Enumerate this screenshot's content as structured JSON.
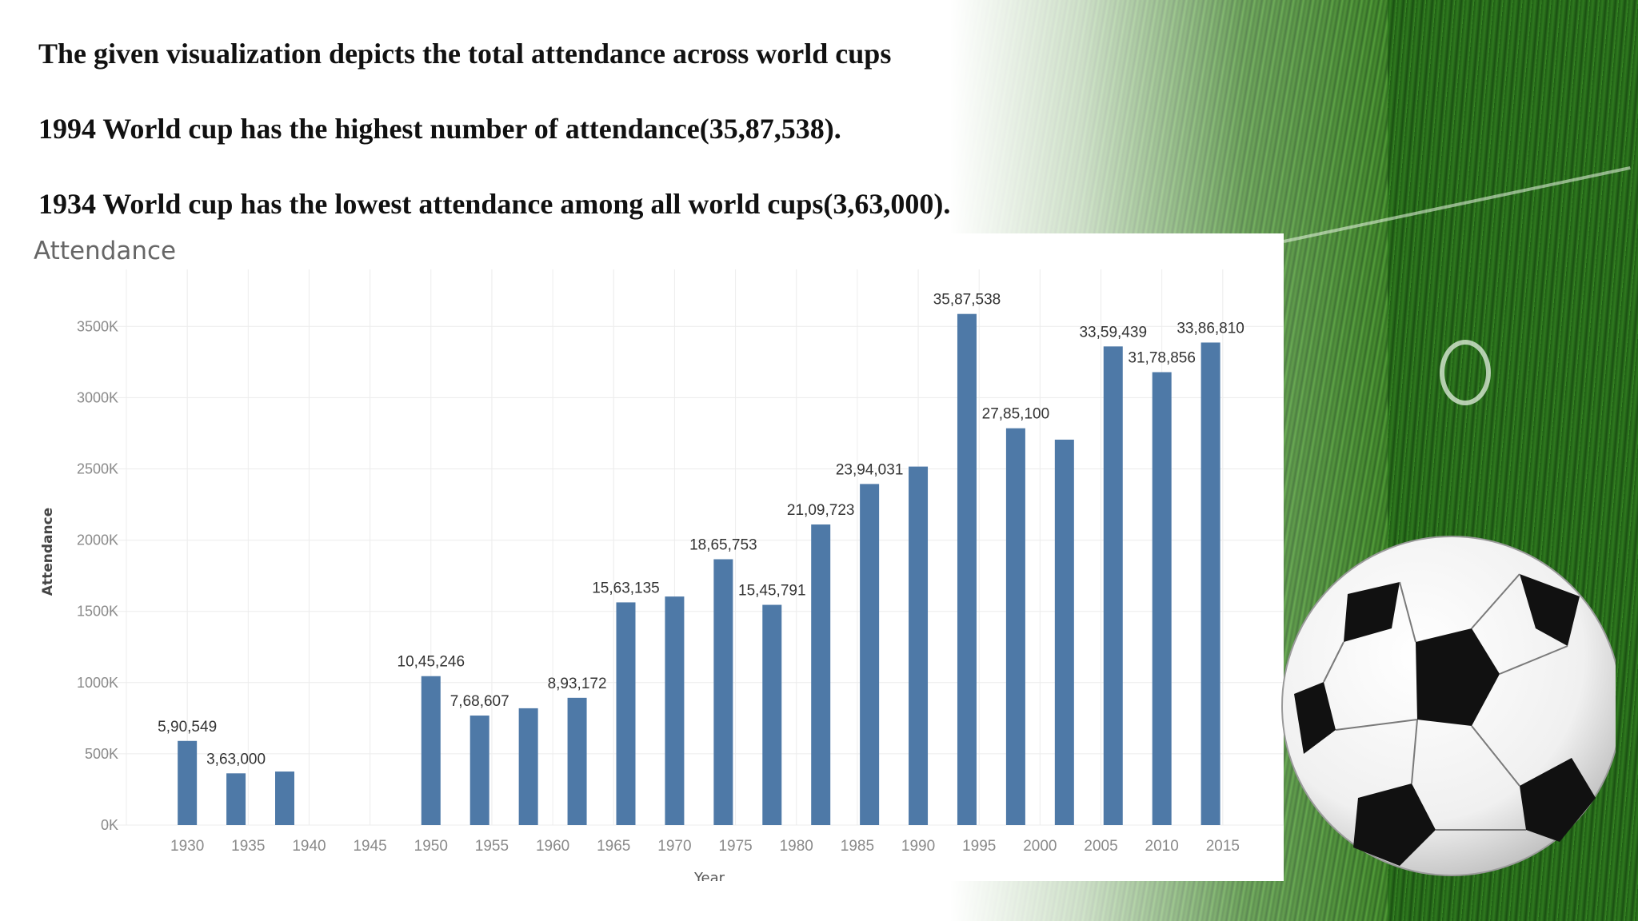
{
  "headlines": [
    "The given visualization depicts the total attendance across world cups",
    "1994 World cup has the highest number of attendance(35,87,538).",
    "1934 World cup has the lowest attendance among all world cups(3,63,000)."
  ],
  "chart_data": {
    "type": "bar",
    "title": "Attendance",
    "xlabel": "Year",
    "ylabel": "Attendance",
    "x": [
      1930,
      1934,
      1938,
      1950,
      1954,
      1958,
      1962,
      1966,
      1970,
      1974,
      1978,
      1982,
      1986,
      1990,
      1994,
      1998,
      2002,
      2006,
      2010,
      2014
    ],
    "values": [
      590549,
      363000,
      375700,
      1045246,
      768607,
      819810,
      893172,
      1563135,
      1603975,
      1865753,
      1545791,
      2109723,
      2394031,
      2516215,
      3587538,
      2785100,
      2705197,
      3359439,
      3178856,
      3386810
    ],
    "data_labels": [
      "5,90,549",
      "3,63,000",
      "",
      "10,45,246",
      "7,68,607",
      "",
      "8,93,172",
      "15,63,135",
      "",
      "18,65,753",
      "15,45,791",
      "21,09,723",
      "23,94,031",
      "",
      "35,87,538",
      "27,85,100",
      "",
      "33,59,439",
      "31,78,856",
      "33,86,810"
    ],
    "xlim": [
      1925,
      2020
    ],
    "ylim": [
      0,
      3900000
    ],
    "x_ticks": [
      "1930",
      "1935",
      "1940",
      "1945",
      "1950",
      "1955",
      "1960",
      "1965",
      "1970",
      "1975",
      "1980",
      "1985",
      "1990",
      "1995",
      "2000",
      "2005",
      "2010",
      "2015"
    ],
    "y_tick_values": [
      0,
      500000,
      1000000,
      1500000,
      2000000,
      2500000,
      3000000,
      3500000
    ],
    "y_ticks": [
      "0K",
      "500K",
      "1000K",
      "1500K",
      "2000K",
      "2500K",
      "3000K",
      "3500K"
    ],
    "bar_color": "#4e79a7",
    "grid": true
  }
}
